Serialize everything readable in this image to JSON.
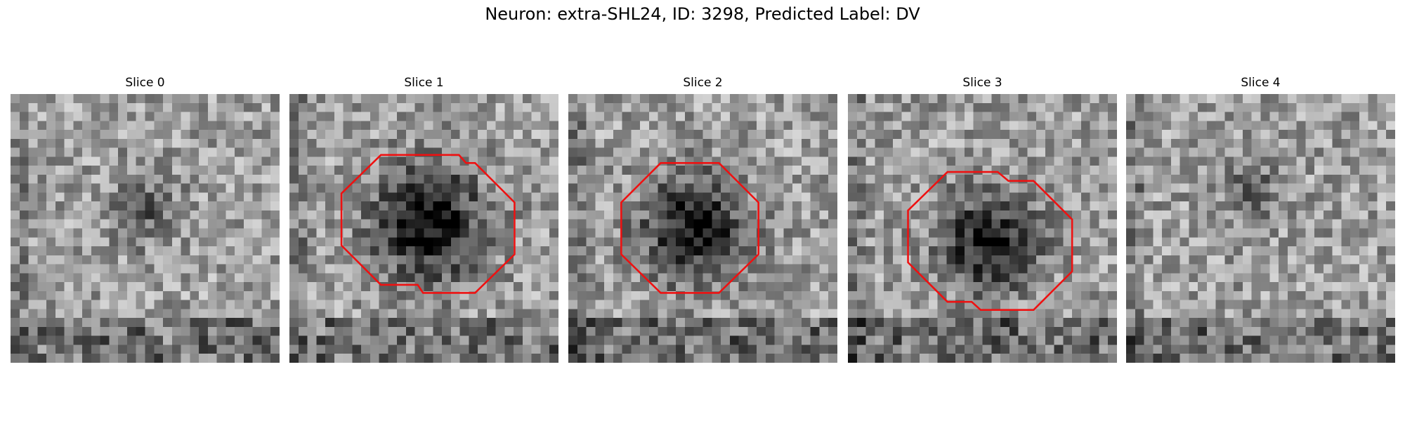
{
  "title": "Neuron: extra-SHL24, ID: 3298, Predicted Label: DV",
  "panels": [
    {
      "title": "Slice 0"
    },
    {
      "title": "Slice 1"
    },
    {
      "title": "Slice 2"
    },
    {
      "title": "Slice 3"
    },
    {
      "title": "Slice 4"
    }
  ]
}
